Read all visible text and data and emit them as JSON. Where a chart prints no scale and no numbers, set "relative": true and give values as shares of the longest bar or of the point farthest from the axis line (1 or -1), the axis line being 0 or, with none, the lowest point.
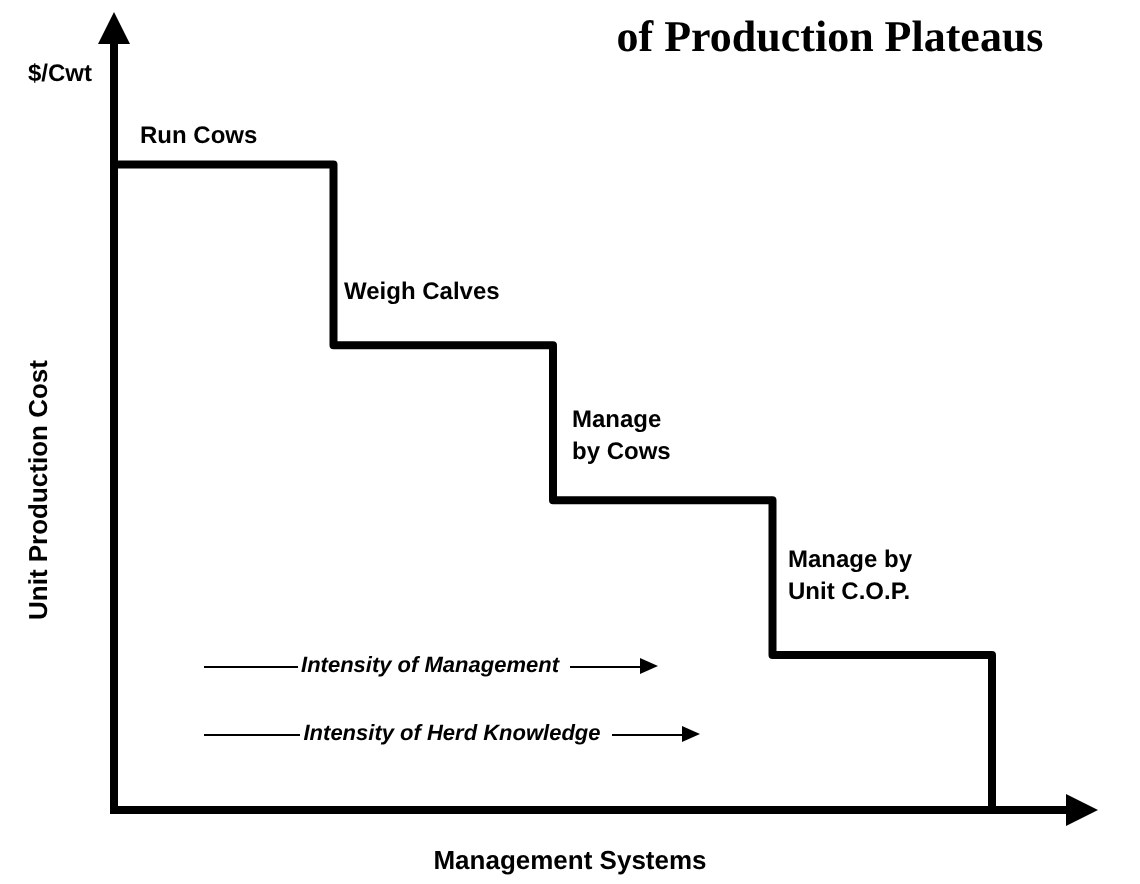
{
  "chart_data": {
    "type": "step",
    "relative": true,
    "title": "of Production Plateaus",
    "xlabel": "Management Systems",
    "ylabel": "Unit Production Cost",
    "categories": [
      null,
      null,
      null,
      null,
      null
    ],
    "series": [
      {
        "color": "#000000",
        "values": [
          1,
          0.72,
          0.48,
          0.24,
          0
        ]
      }
    ],
    "annotations": [
      "$/Cwt",
      "Run Cows",
      "Weigh Calves",
      "Manage\nby Cows",
      "Manage by\nUnit C.O.P.",
      "Intensity of Management",
      "Intensity of Herd Knowledge"
    ]
  }
}
